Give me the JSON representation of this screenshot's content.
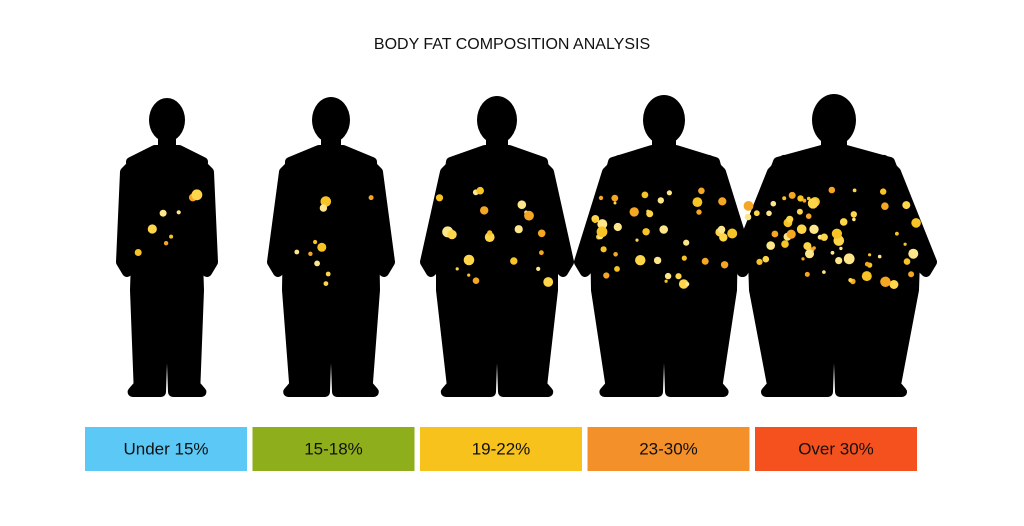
{
  "header": {
    "title": "BODY FAT COMPOSITION ANALYSIS"
  },
  "categories": [
    {
      "label": "Under 15%",
      "color": "#5bc8f5"
    },
    {
      "label": "15-18%",
      "color": "#8fae1b"
    },
    {
      "label": "19-22%",
      "color": "#f8c21c"
    },
    {
      "label": "23-30%",
      "color": "#f3902a"
    },
    {
      "label": "Over 30%",
      "color": "#f4511e"
    }
  ]
}
